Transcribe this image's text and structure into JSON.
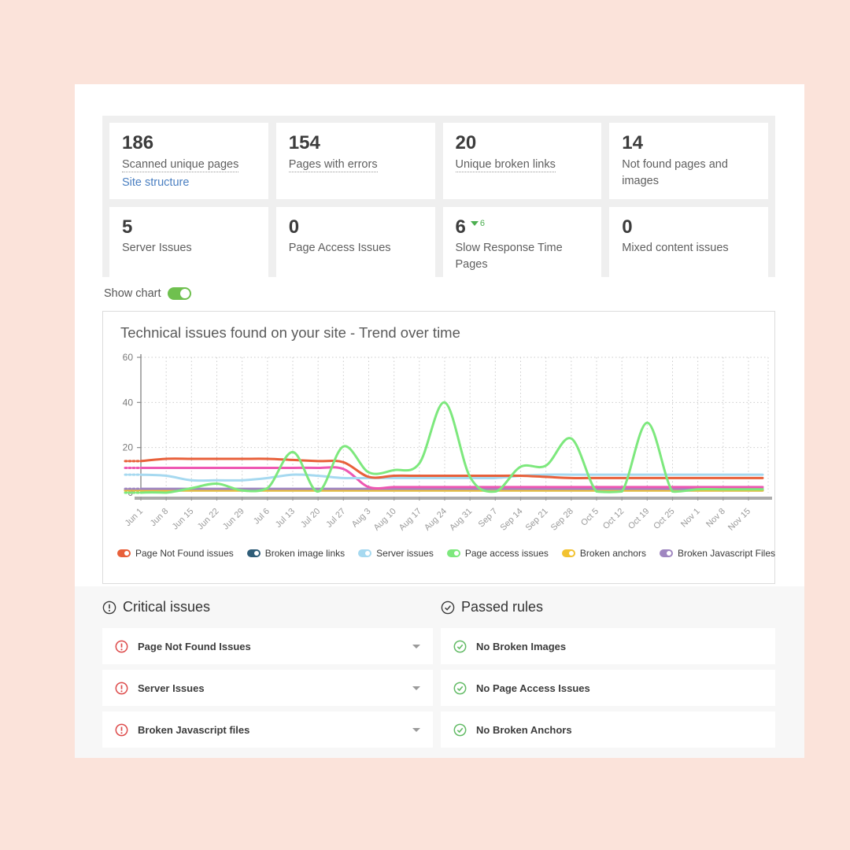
{
  "page": {
    "background": "#fbe3da",
    "card_background": "#ffffff"
  },
  "stats": {
    "cards": [
      {
        "value": "186",
        "label": "Scanned unique pages",
        "underline": true,
        "link": "Site structure"
      },
      {
        "value": "154",
        "label": "Pages with errors",
        "underline": true
      },
      {
        "value": "20",
        "label": "Unique broken links",
        "underline": true
      },
      {
        "value": "14",
        "label": "Not found pages and images",
        "underline": false
      },
      {
        "value": "5",
        "label": "Server Issues",
        "underline": false
      },
      {
        "value": "0",
        "label": "Page Access Issues",
        "underline": false
      },
      {
        "value": "6",
        "label": "Slow Response Time Pages",
        "underline": false,
        "delta": "6",
        "delta_direction": "down",
        "delta_color": "#4caf50"
      },
      {
        "value": "0",
        "label": "Mixed content issues",
        "underline": false
      }
    ]
  },
  "show_chart": {
    "label": "Show chart",
    "state": "on",
    "color": "#6fc04f"
  },
  "chart_data": {
    "type": "line",
    "title": "Technical issues found on your site - Trend over time",
    "xlabel": "",
    "ylabel": "",
    "ylim": [
      0,
      60
    ],
    "yticks": [
      0,
      20,
      40,
      60
    ],
    "grid": "dotted",
    "legend_position": "bottom",
    "x": [
      "Jun 1",
      "Jun 8",
      "Jun 15",
      "Jun 22",
      "Jun 29",
      "Jul 6",
      "Jul 13",
      "Jul 20",
      "Jul 27",
      "Aug 3",
      "Aug 10",
      "Aug 17",
      "Aug 24",
      "Aug 31",
      "Sep 7",
      "Sep 14",
      "Sep 21",
      "Sep 28",
      "Oct 5",
      "Oct 12",
      "Oct 19",
      "Oct 25",
      "Nov 1",
      "Nov 8",
      "Nov 15"
    ],
    "series": [
      {
        "name": "Page Not Found issues",
        "color": "#e8603a",
        "in_legend": true,
        "values": [
          14,
          15,
          15,
          15,
          15,
          15,
          14.5,
          14,
          13.5,
          7,
          7.5,
          7.5,
          7.5,
          7.5,
          7.5,
          7.5,
          7,
          6.5,
          6.5,
          6.5,
          6.5,
          6.5,
          6.5,
          6.5,
          6.5
        ]
      },
      {
        "name": "Broken image links",
        "color": "#2f5d78",
        "in_legend": true,
        "values": [
          1,
          1,
          1,
          1,
          1,
          1,
          1,
          1,
          1,
          1,
          1,
          1,
          1,
          1,
          1,
          1,
          1,
          1,
          1,
          1,
          1,
          1,
          1,
          1,
          1
        ]
      },
      {
        "name": "Server issues",
        "color": "#a6d9f0",
        "in_legend": true,
        "values": [
          8,
          7.5,
          5.5,
          5.5,
          5.5,
          6.5,
          8,
          7.5,
          6.5,
          6.5,
          6.5,
          6.5,
          6.5,
          6.5,
          6.5,
          7.5,
          8,
          8,
          8,
          8,
          8,
          8,
          8,
          8,
          8
        ]
      },
      {
        "name": "Page access issues",
        "color": "#7de87d",
        "in_legend": true,
        "values": [
          0,
          0,
          2,
          4,
          1,
          2,
          18,
          0.5,
          20.5,
          9,
          10,
          13,
          40,
          7,
          0.5,
          11.5,
          12,
          24,
          0.5,
          0.5,
          31,
          0.5,
          1.5,
          1.5,
          1.5
        ]
      },
      {
        "name": "Broken anchors",
        "color": "#f2c230",
        "in_legend": true,
        "values": [
          1,
          1,
          1,
          1,
          1,
          1,
          1,
          1,
          1,
          1,
          1,
          1,
          1,
          1,
          1,
          1,
          1,
          1,
          1,
          1,
          1,
          1,
          1,
          1,
          1
        ]
      },
      {
        "name": "Broken Javascript Files",
        "color": "#9f86c0",
        "in_legend": true,
        "values": [
          1.7,
          1.7,
          1.7,
          1.7,
          1.7,
          1.7,
          1.7,
          1.7,
          1.7,
          1.7,
          1.7,
          1.7,
          1.7,
          1.7,
          1.7,
          1.7,
          1.7,
          1.7,
          1.7,
          1.7,
          1.7,
          1.7,
          1.7,
          1.7,
          1.7
        ]
      },
      {
        "name": "pink-series",
        "color": "#ee57b2",
        "in_legend": false,
        "values": [
          11,
          11,
          11,
          11,
          11,
          11,
          11,
          11,
          10.5,
          2.5,
          2.5,
          2.5,
          2.5,
          2.5,
          2.5,
          2.5,
          2.5,
          2.5,
          2.5,
          2.5,
          2.5,
          2.5,
          2.5,
          2.5,
          2.5
        ]
      }
    ]
  },
  "sections": {
    "critical": {
      "title": "Critical issues",
      "items": [
        "Page Not Found Issues",
        "Server Issues",
        "Broken Javascript files"
      ]
    },
    "passed": {
      "title": "Passed rules",
      "items": [
        "No Broken Images",
        "No Page Access Issues",
        "No Broken Anchors"
      ]
    }
  }
}
